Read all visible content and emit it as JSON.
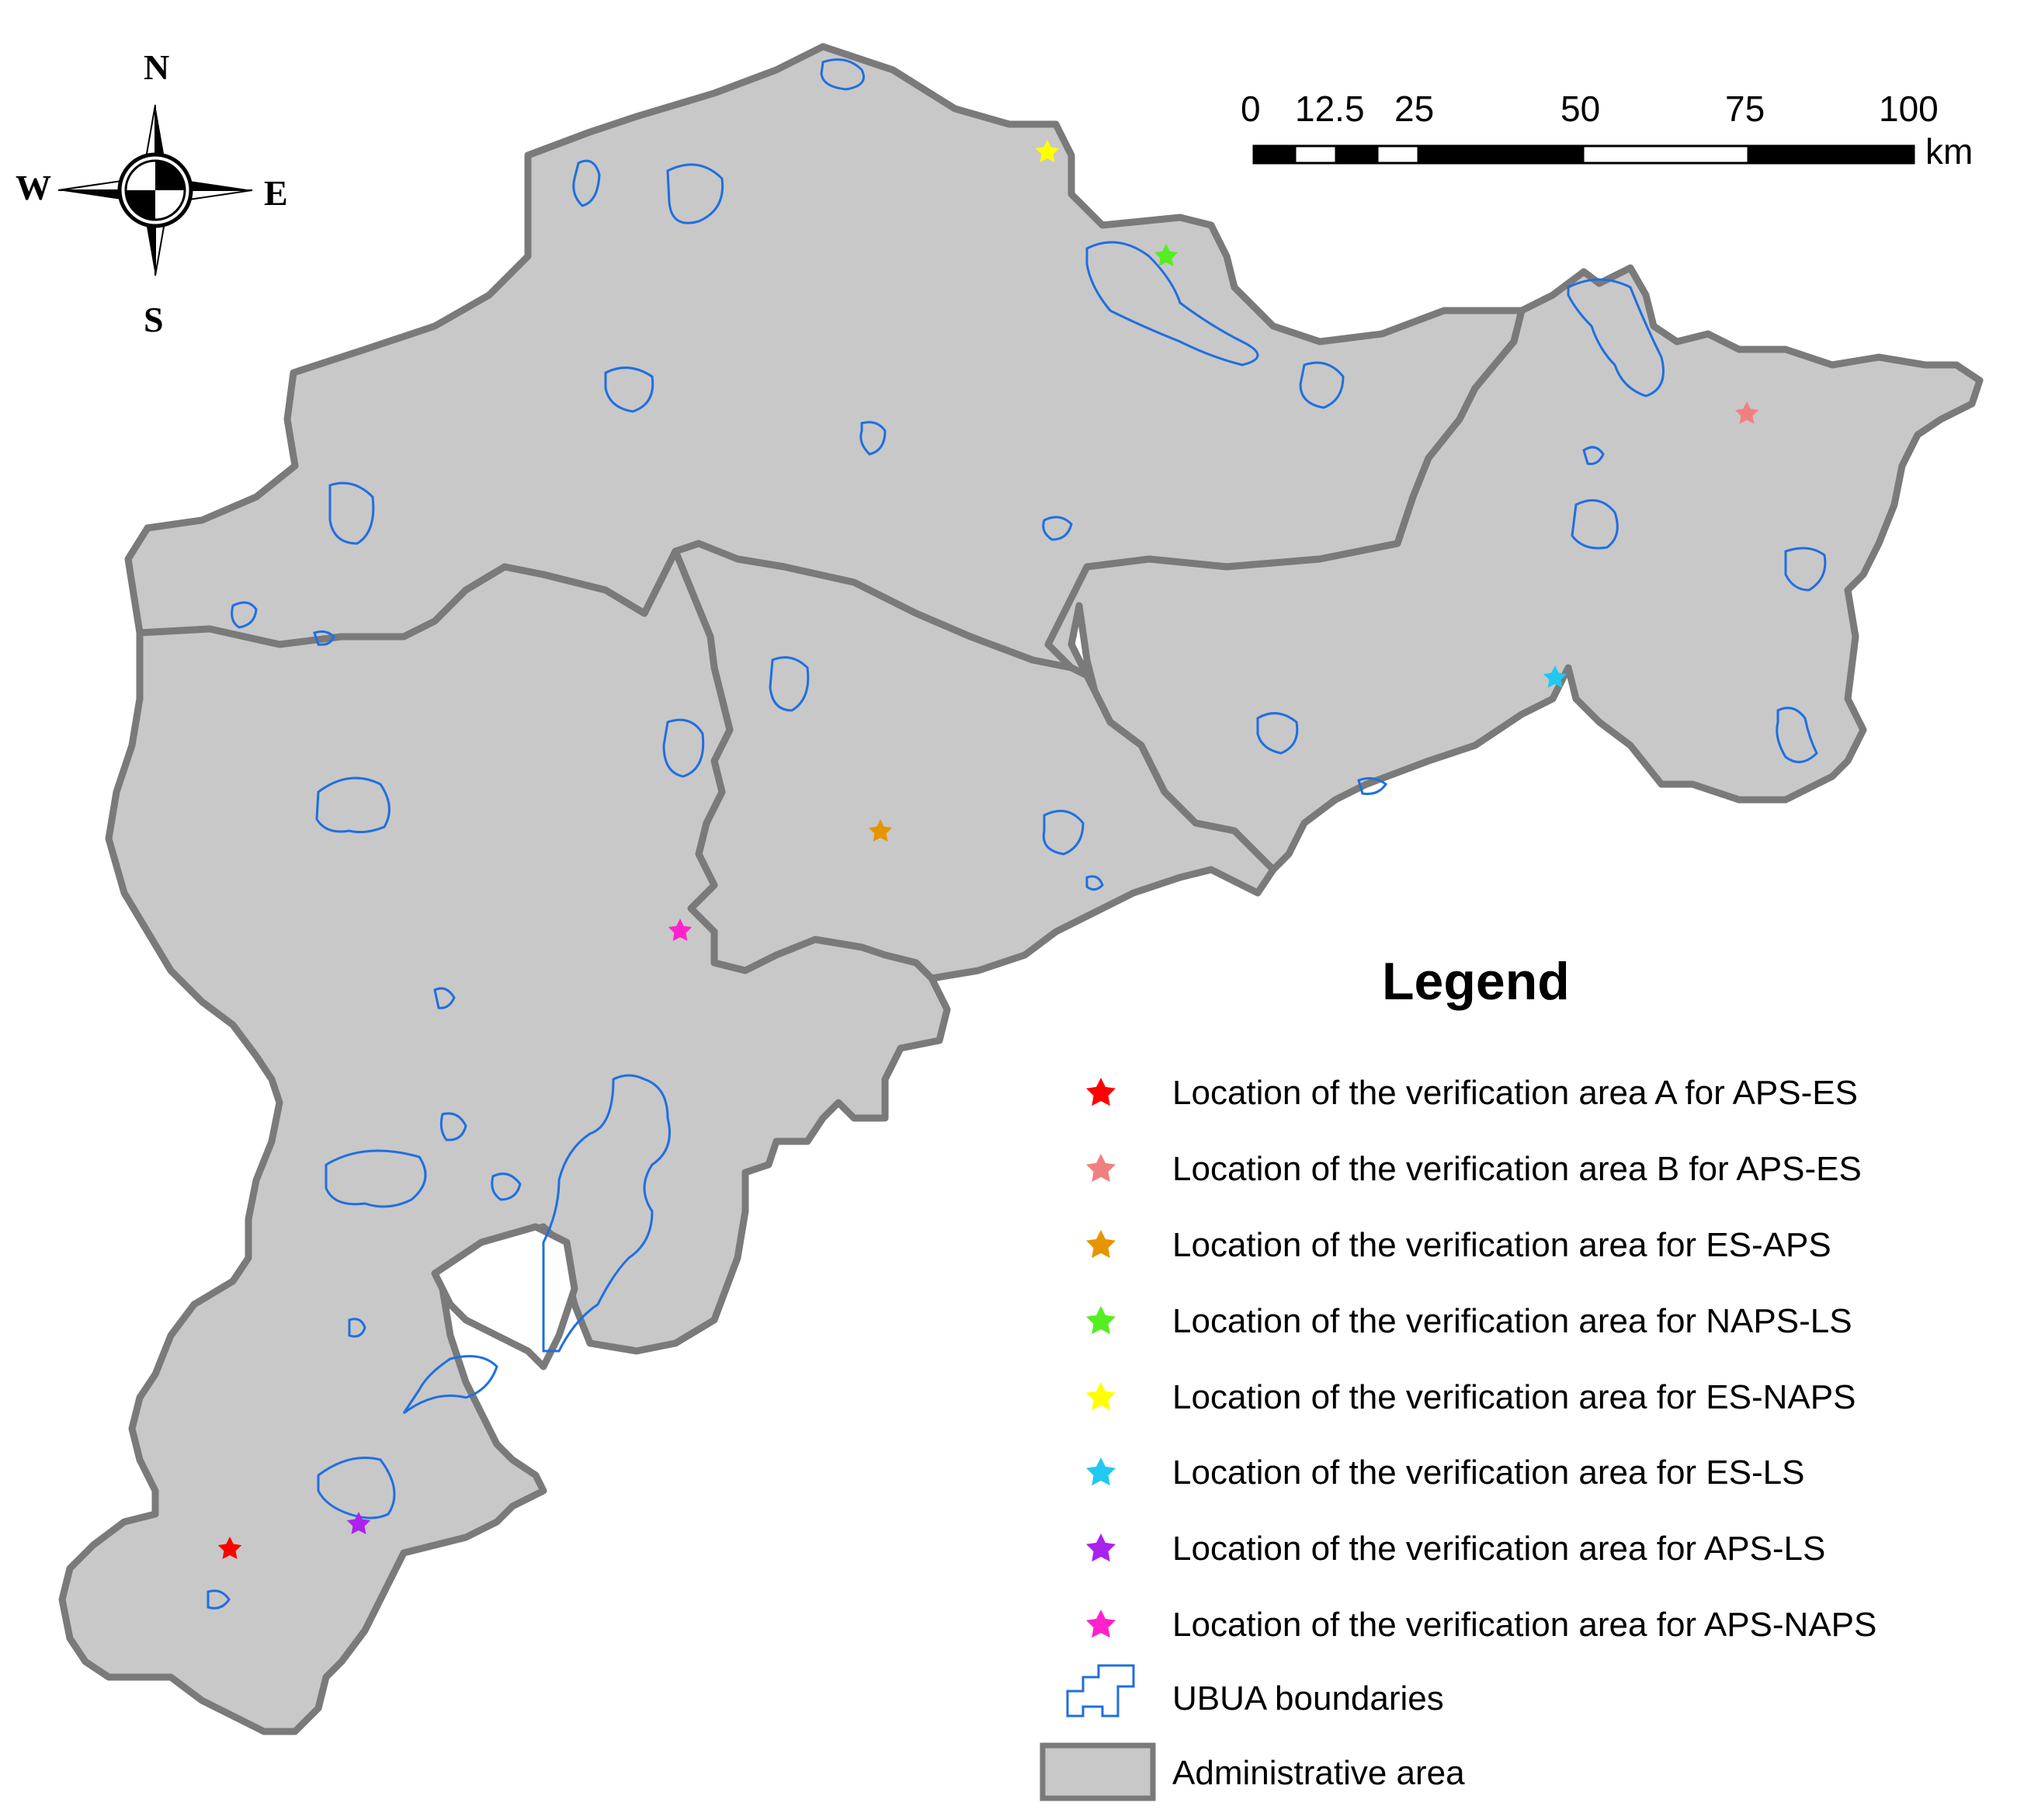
{
  "compass": {
    "north": "N",
    "south": "S",
    "east": "E",
    "west": "W"
  },
  "scale_bar": {
    "ticks": [
      "0",
      "12.5",
      "25",
      "50",
      "75",
      "100"
    ],
    "unit": "km"
  },
  "legend": {
    "title": "Legend",
    "items": [
      {
        "label": "Location of the verification area A  for APS-ES",
        "symbol": "star",
        "color": "#ff0000"
      },
      {
        "label": "Location of the verification area B  for APS-ES",
        "symbol": "star",
        "color": "#f08080"
      },
      {
        "label": "Location of the verification area  for ES-APS",
        "symbol": "star",
        "color": "#e69500"
      },
      {
        "label": "Location of the verification area  for NAPS-LS",
        "symbol": "star",
        "color": "#55ee22"
      },
      {
        "label": "Location of the verification area  for ES-NAPS",
        "symbol": "star",
        "color": "#ffff00"
      },
      {
        "label": "Location of the verification area  for ES-LS",
        "symbol": "star",
        "color": "#22c8f0"
      },
      {
        "label": "Location of the verification area  for APS-LS",
        "symbol": "star",
        "color": "#aa22ee"
      },
      {
        "label": "Location of the verification area  for APS-NAPS",
        "symbol": "star",
        "color": "#ff22cc"
      },
      {
        "label": "UBUA boundaries",
        "symbol": "outline",
        "color": "#1f6fe0"
      },
      {
        "label": "Administrative area",
        "symbol": "fill",
        "color": "#c8c8c8"
      }
    ]
  },
  "colors": {
    "admin_fill": "#c8c8c8",
    "admin_border": "#7a7a7a",
    "ubua": "#1f6fe0"
  }
}
